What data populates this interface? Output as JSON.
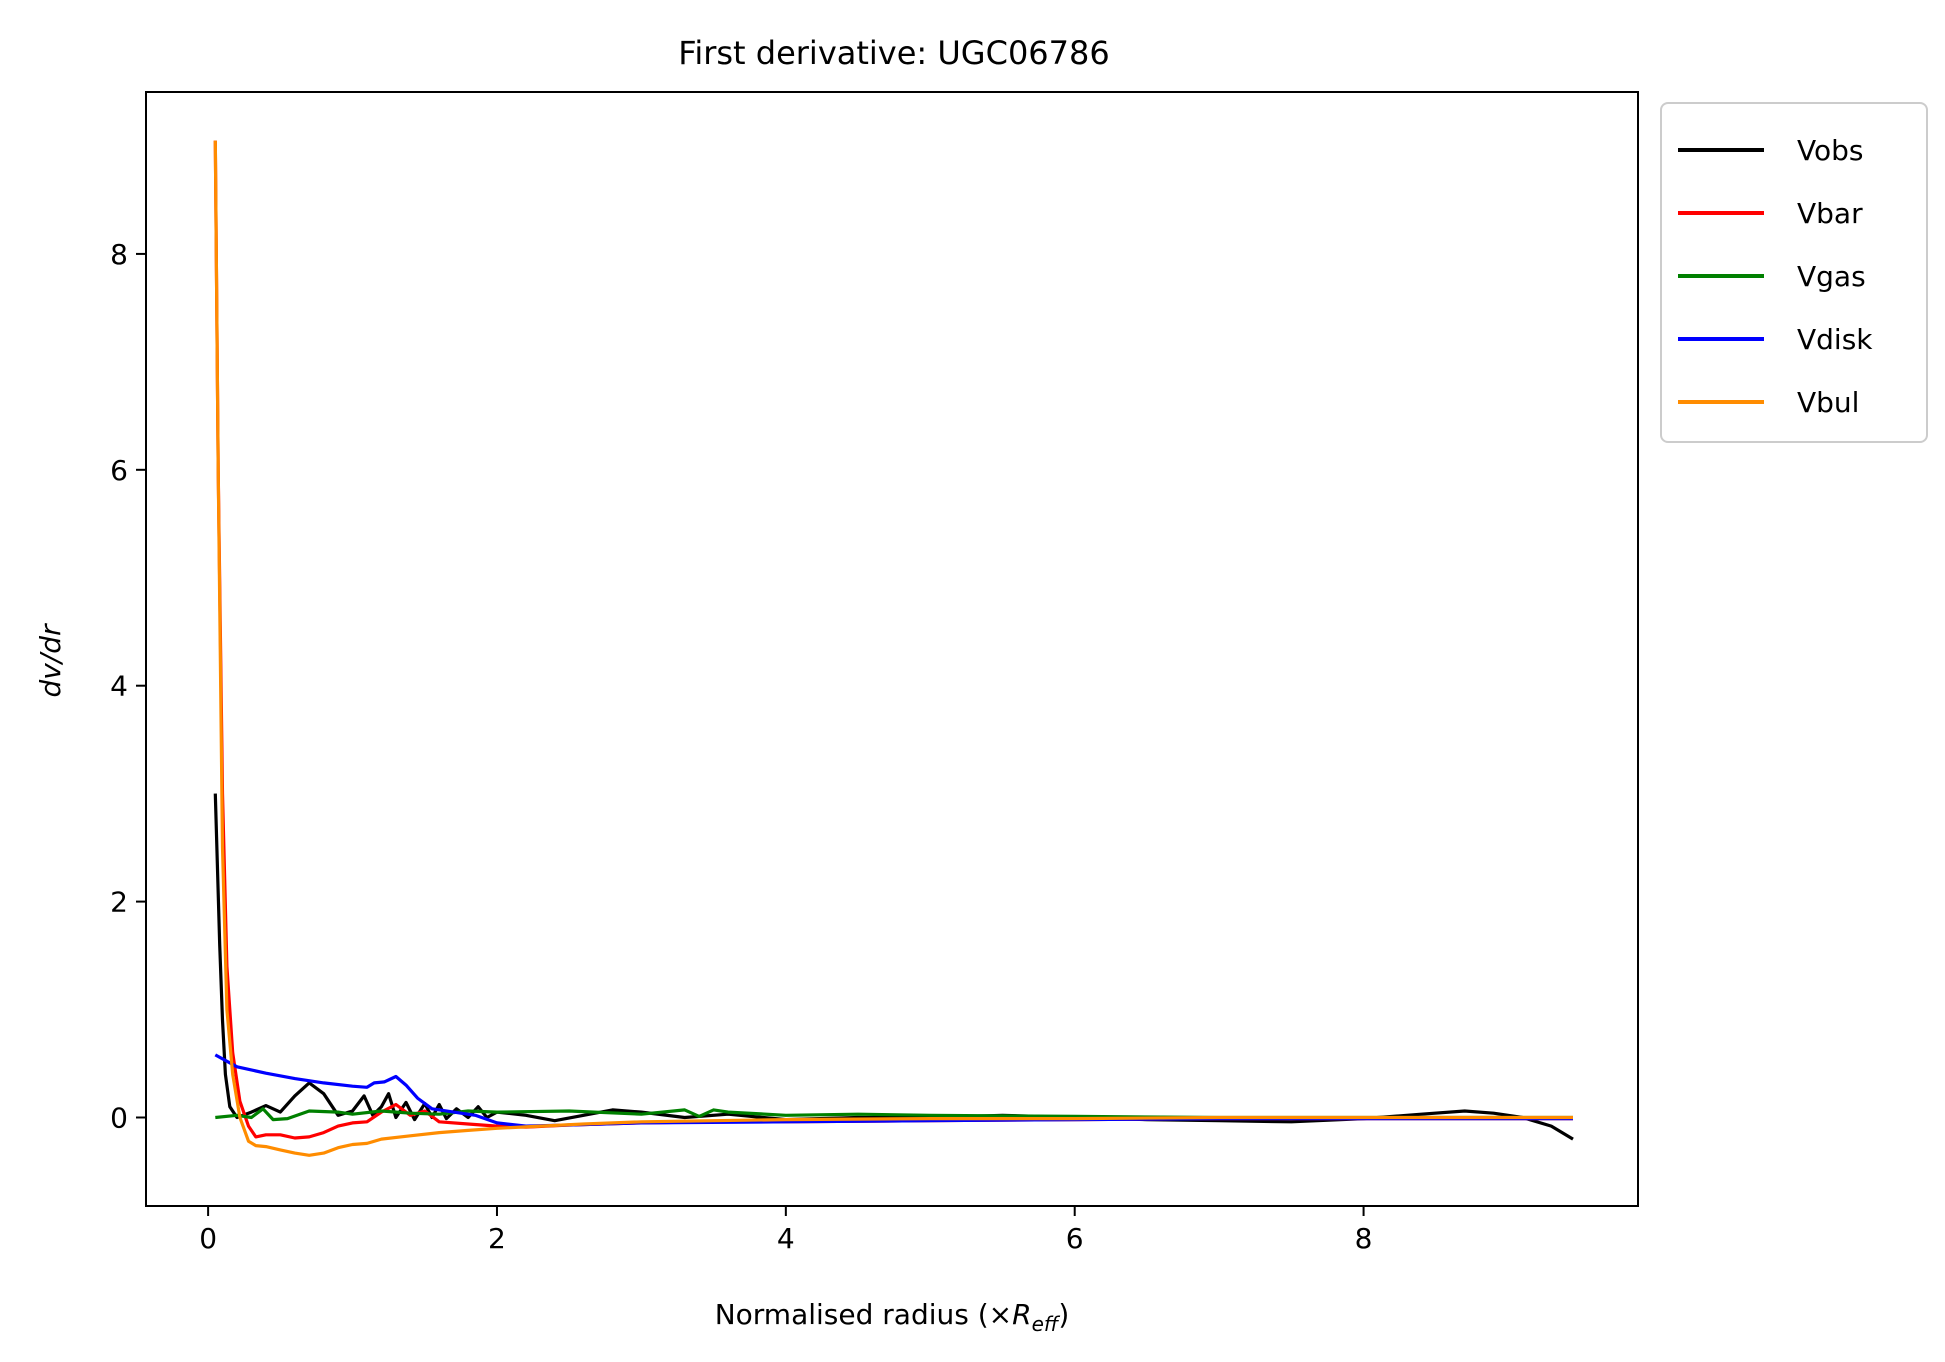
{
  "chart_data": {
    "type": "line",
    "title": "First derivative: UGC06786",
    "xlabel": "Normalised radius (×R_eff)",
    "xlabel_parts": {
      "main": "Normalised radius (×",
      "var": "R",
      "sub": "eff",
      "close": ")"
    },
    "ylabel": "dv/dr",
    "xlim": [
      -0.43,
      9.9
    ],
    "ylim": [
      -0.82,
      9.5
    ],
    "x_ticks": [
      0,
      2,
      4,
      6,
      8
    ],
    "y_ticks": [
      0,
      2,
      4,
      6,
      8
    ],
    "x_tick_labels": [
      "0",
      "2",
      "4",
      "6",
      "8"
    ],
    "y_tick_labels": [
      "0",
      "2",
      "4",
      "6",
      "8"
    ],
    "grid": false,
    "legend_position": "outside upper right",
    "series": [
      {
        "name": "Vobs",
        "color": "#000000",
        "points": [
          [
            0.05,
            3.0
          ],
          [
            0.08,
            1.6
          ],
          [
            0.1,
            0.9
          ],
          [
            0.12,
            0.4
          ],
          [
            0.15,
            0.1
          ],
          [
            0.2,
            0.0
          ],
          [
            0.3,
            0.05
          ],
          [
            0.4,
            0.11
          ],
          [
            0.5,
            0.05
          ],
          [
            0.6,
            0.2
          ],
          [
            0.7,
            0.32
          ],
          [
            0.8,
            0.22
          ],
          [
            0.9,
            0.02
          ],
          [
            1.0,
            0.06
          ],
          [
            1.08,
            0.2
          ],
          [
            1.14,
            0.02
          ],
          [
            1.2,
            0.1
          ],
          [
            1.25,
            0.22
          ],
          [
            1.3,
            0.0
          ],
          [
            1.37,
            0.14
          ],
          [
            1.43,
            -0.02
          ],
          [
            1.5,
            0.13
          ],
          [
            1.55,
            0.0
          ],
          [
            1.6,
            0.12
          ],
          [
            1.65,
            -0.01
          ],
          [
            1.72,
            0.08
          ],
          [
            1.8,
            0.0
          ],
          [
            1.87,
            0.1
          ],
          [
            1.93,
            0.0
          ],
          [
            2.0,
            0.05
          ],
          [
            2.2,
            0.02
          ],
          [
            2.4,
            -0.03
          ],
          [
            2.6,
            0.02
          ],
          [
            2.8,
            0.07
          ],
          [
            3.0,
            0.05
          ],
          [
            3.3,
            0.0
          ],
          [
            3.6,
            0.03
          ],
          [
            4.0,
            -0.02
          ],
          [
            4.5,
            0.0
          ],
          [
            5.0,
            0.0
          ],
          [
            5.5,
            0.02
          ],
          [
            6.0,
            0.0
          ],
          [
            6.5,
            -0.02
          ],
          [
            7.0,
            -0.03
          ],
          [
            7.5,
            -0.04
          ],
          [
            8.0,
            -0.01
          ],
          [
            8.4,
            0.03
          ],
          [
            8.7,
            0.06
          ],
          [
            8.9,
            0.04
          ],
          [
            9.1,
            0.0
          ],
          [
            9.3,
            -0.08
          ],
          [
            9.45,
            -0.2
          ]
        ]
      },
      {
        "name": "Vbar",
        "color": "#ff0000",
        "points": [
          [
            0.05,
            9.05
          ],
          [
            0.07,
            6.0
          ],
          [
            0.1,
            3.0
          ],
          [
            0.13,
            1.4
          ],
          [
            0.17,
            0.6
          ],
          [
            0.22,
            0.15
          ],
          [
            0.28,
            -0.08
          ],
          [
            0.33,
            -0.18
          ],
          [
            0.4,
            -0.16
          ],
          [
            0.5,
            -0.16
          ],
          [
            0.6,
            -0.19
          ],
          [
            0.7,
            -0.18
          ],
          [
            0.8,
            -0.14
          ],
          [
            0.9,
            -0.08
          ],
          [
            1.0,
            -0.05
          ],
          [
            1.1,
            -0.04
          ],
          [
            1.2,
            0.05
          ],
          [
            1.3,
            0.12
          ],
          [
            1.4,
            0.02
          ],
          [
            1.5,
            0.06
          ],
          [
            1.6,
            -0.04
          ],
          [
            1.8,
            -0.06
          ],
          [
            2.0,
            -0.08
          ],
          [
            2.2,
            -0.09
          ],
          [
            2.5,
            -0.07
          ],
          [
            3.0,
            -0.05
          ],
          [
            3.5,
            -0.04
          ],
          [
            4.0,
            -0.04
          ],
          [
            5.0,
            -0.03
          ],
          [
            6.0,
            -0.02
          ],
          [
            7.0,
            -0.01
          ],
          [
            8.0,
            -0.01
          ],
          [
            9.0,
            -0.01
          ],
          [
            9.45,
            -0.01
          ]
        ]
      },
      {
        "name": "Vgas",
        "color": "#008000",
        "points": [
          [
            0.05,
            0.0
          ],
          [
            0.2,
            0.02
          ],
          [
            0.3,
            0.0
          ],
          [
            0.38,
            0.08
          ],
          [
            0.45,
            -0.02
          ],
          [
            0.55,
            -0.01
          ],
          [
            0.7,
            0.06
          ],
          [
            0.9,
            0.05
          ],
          [
            1.0,
            0.03
          ],
          [
            1.2,
            0.06
          ],
          [
            1.4,
            0.04
          ],
          [
            1.6,
            0.03
          ],
          [
            1.8,
            0.06
          ],
          [
            2.0,
            0.05
          ],
          [
            2.5,
            0.06
          ],
          [
            3.0,
            0.03
          ],
          [
            3.3,
            0.07
          ],
          [
            3.4,
            0.01
          ],
          [
            3.5,
            0.07
          ],
          [
            3.6,
            0.05
          ],
          [
            4.0,
            0.02
          ],
          [
            4.5,
            0.03
          ],
          [
            5.0,
            0.02
          ],
          [
            6.0,
            0.01
          ],
          [
            7.0,
            0.0
          ],
          [
            8.0,
            0.0
          ],
          [
            9.0,
            0.0
          ],
          [
            9.45,
            0.0
          ]
        ]
      },
      {
        "name": "Vdisk",
        "color": "#0000ff",
        "points": [
          [
            0.05,
            0.58
          ],
          [
            0.2,
            0.47
          ],
          [
            0.4,
            0.41
          ],
          [
            0.6,
            0.36
          ],
          [
            0.8,
            0.32
          ],
          [
            1.0,
            0.29
          ],
          [
            1.1,
            0.28
          ],
          [
            1.15,
            0.32
          ],
          [
            1.22,
            0.33
          ],
          [
            1.3,
            0.38
          ],
          [
            1.37,
            0.3
          ],
          [
            1.45,
            0.18
          ],
          [
            1.55,
            0.08
          ],
          [
            1.7,
            0.05
          ],
          [
            1.85,
            0.02
          ],
          [
            2.0,
            -0.05
          ],
          [
            2.2,
            -0.08
          ],
          [
            2.5,
            -0.07
          ],
          [
            3.0,
            -0.05
          ],
          [
            4.0,
            -0.04
          ],
          [
            5.0,
            -0.03
          ],
          [
            6.0,
            -0.02
          ],
          [
            7.0,
            -0.01
          ],
          [
            8.0,
            -0.01
          ],
          [
            9.45,
            -0.01
          ]
        ]
      },
      {
        "name": "Vbul",
        "color": "#ff8c00",
        "points": [
          [
            0.05,
            9.05
          ],
          [
            0.07,
            6.0
          ],
          [
            0.1,
            2.5
          ],
          [
            0.13,
            1.0
          ],
          [
            0.17,
            0.4
          ],
          [
            0.22,
            0.0
          ],
          [
            0.28,
            -0.22
          ],
          [
            0.33,
            -0.26
          ],
          [
            0.4,
            -0.27
          ],
          [
            0.5,
            -0.3
          ],
          [
            0.6,
            -0.33
          ],
          [
            0.7,
            -0.35
          ],
          [
            0.8,
            -0.33
          ],
          [
            0.9,
            -0.28
          ],
          [
            1.0,
            -0.25
          ],
          [
            1.1,
            -0.24
          ],
          [
            1.2,
            -0.2
          ],
          [
            1.4,
            -0.17
          ],
          [
            1.6,
            -0.14
          ],
          [
            1.8,
            -0.12
          ],
          [
            2.0,
            -0.1
          ],
          [
            2.3,
            -0.08
          ],
          [
            2.6,
            -0.06
          ],
          [
            3.0,
            -0.04
          ],
          [
            3.5,
            -0.03
          ],
          [
            4.0,
            -0.02
          ],
          [
            5.0,
            -0.01
          ],
          [
            6.0,
            -0.01
          ],
          [
            7.0,
            0.0
          ],
          [
            8.0,
            0.0
          ],
          [
            9.45,
            0.0
          ]
        ]
      }
    ]
  }
}
